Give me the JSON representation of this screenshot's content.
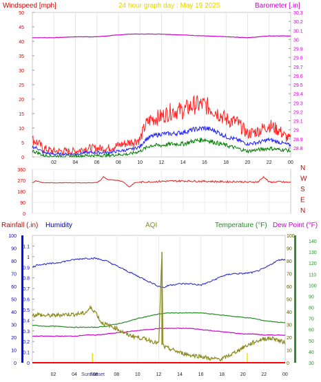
{
  "header": {
    "left_label": "Windspeed [mph]",
    "center_label": "24 hour graph day : May 19 2025",
    "right_label": "Barometer [.in]"
  },
  "colors": {
    "wind_left": "#cc0000",
    "title": "#e6d200",
    "barometer": "#cc00cc",
    "gust": "#ff2020",
    "avg": "#2020ff",
    "low": "#008000",
    "direction": "#e02020",
    "humidity_label": "#0000aa",
    "aqi": "#8a8a1e",
    "temperature": "#228b22",
    "dewpoint": "#cc00cc",
    "rain_axis": "#0000ff",
    "rain_baseline": "#ff0000",
    "sun_marker": "#f0e000"
  },
  "chart_data": [
    {
      "type": "line",
      "name": "wind-barometer",
      "x_tick_labels": [
        "02",
        "04",
        "06",
        "08",
        "10",
        "12",
        "14",
        "16",
        "18",
        "20",
        "22",
        "00"
      ],
      "x_hours": [
        2,
        4,
        6,
        8,
        10,
        12,
        14,
        16,
        18,
        20,
        22,
        24
      ],
      "xlim": [
        0,
        24
      ],
      "y_left": {
        "ylim": [
          0,
          50
        ],
        "ticks": [
          "0",
          "5",
          "10",
          "15",
          "20",
          "25",
          "30",
          "35",
          "40",
          "45",
          "50"
        ]
      },
      "y_right": {
        "ylim": [
          28.7,
          30.3
        ],
        "ticks": [
          "28.8",
          "28.9",
          "29",
          "29.1",
          "29.2",
          "29.3",
          "29.4",
          "29.5",
          "29.6",
          "29.7",
          "29.8",
          "29.9",
          "30",
          "30.1",
          "30.2",
          "30.3"
        ]
      },
      "barometer": {
        "x": [
          0,
          2,
          4,
          6,
          8,
          9,
          10,
          12,
          14,
          16,
          18,
          20,
          21,
          22,
          23,
          24
        ],
        "y": [
          30.02,
          30.02,
          30.03,
          30.03,
          30.05,
          30.06,
          30.06,
          30.06,
          30.05,
          30.04,
          30.03,
          30.02,
          30.03,
          30.04,
          30.04,
          30.04
        ]
      },
      "gust": {
        "x": [
          0,
          0.5,
          1,
          2,
          3,
          4,
          5,
          6,
          7,
          8,
          9,
          10,
          10.5,
          11,
          12,
          13,
          14,
          15,
          16,
          17,
          18,
          19,
          20,
          21,
          22,
          23,
          23.5,
          24
        ],
        "y": [
          6,
          5,
          3,
          2,
          2,
          2,
          3,
          3,
          3,
          4,
          5,
          6,
          11,
          13,
          14,
          16,
          16,
          18,
          18,
          16,
          13,
          12,
          8,
          9,
          11,
          9,
          7,
          6
        ]
      },
      "average": {
        "x": [
          0,
          0.5,
          1,
          2,
          3,
          4,
          5,
          6,
          7,
          8,
          9,
          10,
          10.5,
          11,
          12,
          13,
          14,
          15,
          16,
          17,
          18,
          19,
          20,
          21,
          22,
          23,
          23.5,
          24
        ],
        "y": [
          3.5,
          3,
          1.5,
          1,
          1,
          1,
          1.5,
          1.5,
          1.5,
          2,
          2.5,
          3.5,
          6,
          7,
          8,
          8,
          8.5,
          9.5,
          10,
          9,
          7,
          6,
          4.5,
          5,
          6,
          5,
          4.5,
          4
        ]
      },
      "low": {
        "x": [
          0,
          0.5,
          1,
          2,
          3,
          4,
          5,
          6,
          7,
          8,
          9,
          10,
          10.5,
          11,
          12,
          13,
          14,
          15,
          16,
          17,
          18,
          19,
          20,
          21,
          22,
          23,
          23.5,
          24
        ],
        "y": [
          2,
          1.5,
          0.5,
          0.3,
          0.3,
          0.3,
          0.5,
          0.5,
          0.5,
          0.8,
          1,
          2,
          3,
          4,
          4,
          4.5,
          4.5,
          5.5,
          6,
          5,
          4,
          3,
          2,
          2.5,
          3,
          2.5,
          2.5,
          2
        ]
      }
    },
    {
      "type": "line",
      "name": "wind-direction",
      "y_ticks": [
        "360",
        "270",
        "180",
        "90",
        "0"
      ],
      "ylim": [
        0,
        360
      ],
      "compass_labels": [
        "N",
        "W",
        "S",
        "E",
        "N"
      ],
      "direction": {
        "x": [
          0,
          0.3,
          1,
          3,
          5,
          6,
          6.4,
          6.6,
          7,
          8,
          8.5,
          9,
          9.5,
          10,
          11,
          12,
          14,
          16,
          18,
          19,
          20,
          21,
          21.5,
          22,
          23,
          24
        ],
        "y": [
          250,
          265,
          250,
          250,
          250,
          252,
          275,
          300,
          275,
          270,
          255,
          215,
          250,
          255,
          258,
          262,
          265,
          262,
          258,
          260,
          255,
          258,
          300,
          255,
          258,
          252
        ]
      }
    },
    {
      "type": "line",
      "name": "rain-humidity-temperature",
      "labels": {
        "rainfall": "Rainfall (.in)",
        "humidity": "Humidity",
        "aqi": "AQI",
        "temperature": "Temperature (°F)",
        "dewpoint": "Dew Point (°F)",
        "sunrise": "Sunrise",
        "sunset": "Sunset"
      },
      "x_tick_labels": [
        "02",
        "04",
        "06",
        "08",
        "10",
        "12",
        "14",
        "16",
        "18",
        "20",
        "22",
        "00"
      ],
      "sunrise_hour": 5.7,
      "sunset_hour": 20.4,
      "rain_axis": {
        "ylim": [
          0,
          1.2
        ],
        "ticks": [
          "0",
          "0.1",
          "0.2",
          "0.3",
          "0.4",
          "0.5",
          "0.6",
          "0.7",
          "0.8",
          "0.9",
          "1",
          "1.1"
        ]
      },
      "humidity_axis": {
        "ylim": [
          0,
          100
        ],
        "ticks": [
          "0",
          "10",
          "20",
          "30",
          "40",
          "50",
          "60",
          "70",
          "80",
          "90",
          "100"
        ]
      },
      "aqi_axis": {
        "ylim": [
          0,
          100
        ],
        "ticks": [
          "0",
          "10",
          "20",
          "30",
          "40",
          "50",
          "60",
          "70",
          "80",
          "90",
          "100"
        ]
      },
      "temp_axis": {
        "ylim": [
          30,
          145
        ],
        "ticks": [
          "30",
          "40",
          "50",
          "60",
          "70",
          "80",
          "90",
          "100",
          "110",
          "120",
          "130",
          "140"
        ]
      },
      "humidity": {
        "x": [
          0,
          0.5,
          2,
          4,
          5,
          6,
          7,
          8,
          9,
          10,
          11,
          12,
          12.5,
          13,
          14,
          15,
          16,
          17,
          18,
          19,
          20,
          21,
          22,
          23,
          23.5,
          24
        ],
        "y": [
          75,
          77,
          78,
          81,
          82,
          82,
          80,
          76,
          72,
          68,
          64,
          60,
          59,
          61,
          62,
          62,
          61,
          64,
          68,
          70,
          70,
          71,
          74,
          79,
          81,
          81
        ]
      },
      "aqi": {
        "x": [
          0,
          0.5,
          1,
          2,
          3,
          4,
          5,
          5.5,
          6,
          6.5,
          7,
          8,
          9,
          10,
          11,
          12,
          12.3,
          12.4,
          12.6,
          13,
          14,
          15,
          16,
          17,
          18,
          19,
          20,
          21,
          22,
          23,
          23.5,
          24
        ],
        "y": [
          37,
          38,
          37,
          37,
          38,
          38,
          39,
          43,
          40,
          32,
          30,
          27,
          22,
          20,
          18,
          15,
          87,
          14,
          12,
          11,
          8,
          6,
          5,
          3,
          3,
          7,
          12,
          16,
          19,
          19,
          17,
          16
        ]
      },
      "temperature": {
        "x": [
          0,
          1,
          2,
          4,
          5,
          6,
          7,
          8,
          9,
          10,
          11,
          12,
          13,
          14,
          15,
          16,
          17,
          18,
          19,
          20,
          21,
          22,
          23,
          24
        ],
        "y": [
          64,
          63,
          63,
          62,
          62,
          62,
          63,
          65,
          67,
          70,
          72,
          74,
          75,
          75,
          75,
          75,
          74,
          73,
          72,
          71,
          70,
          68,
          67,
          66
        ]
      },
      "dewpoint": {
        "x": [
          0,
          1,
          2,
          4,
          5,
          6,
          7,
          8,
          9,
          10,
          11,
          12,
          13,
          14,
          15,
          16,
          17,
          18,
          19,
          20,
          21,
          22,
          23,
          24
        ],
        "y": [
          54,
          54,
          54,
          54,
          55,
          55,
          56,
          57,
          58,
          59,
          60,
          61,
          61,
          61,
          61,
          60,
          59,
          58,
          57,
          56,
          56,
          55,
          55,
          55
        ]
      },
      "rain": {
        "x": [
          0,
          24
        ],
        "y": [
          0,
          0
        ]
      }
    }
  ]
}
